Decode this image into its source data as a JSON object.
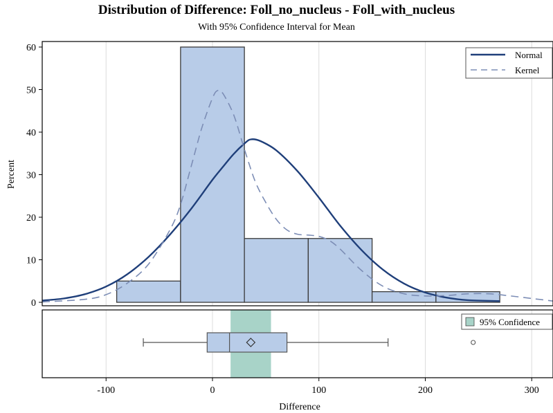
{
  "chart_data": {
    "type": "bar",
    "title": "Distribution of Difference: Foll_no_nucleus - Foll_with_nucleus",
    "subtitle": "With 95% Confidence Interval for Mean",
    "xlabel": "Difference",
    "ylabel": "Percent",
    "xlim": [
      -160,
      320
    ],
    "ylim": [
      0,
      61
    ],
    "x_ticks": [
      -100,
      0,
      100,
      200,
      300
    ],
    "y_ticks": [
      0,
      10,
      20,
      30,
      40,
      50,
      60
    ],
    "bins": [
      {
        "from": -90,
        "to": -30,
        "percent": 5
      },
      {
        "from": -30,
        "to": 30,
        "percent": 60
      },
      {
        "from": 30,
        "to": 90,
        "percent": 15
      },
      {
        "from": 90,
        "to": 150,
        "percent": 15
      },
      {
        "from": 150,
        "to": 210,
        "percent": 2.5
      },
      {
        "from": 210,
        "to": 270,
        "percent": 2.5
      }
    ],
    "series": [
      {
        "name": "Normal",
        "style": "solid",
        "color": "#1f3f7a",
        "x": [
          -160,
          -140,
          -120,
          -100,
          -80,
          -60,
          -40,
          -20,
          0,
          10,
          20,
          30,
          36,
          45,
          60,
          80,
          100,
          120,
          140,
          160,
          180,
          200,
          220,
          240,
          270
        ],
        "y": [
          0.4,
          0.9,
          1.9,
          3.7,
          6.6,
          10.7,
          15.9,
          22.0,
          28.8,
          31.9,
          34.9,
          37.3,
          38.3,
          37.9,
          35.7,
          30.8,
          24.6,
          18.0,
          12.3,
          7.7,
          4.4,
          2.3,
          1.1,
          0.5,
          0.3
        ]
      },
      {
        "name": "Kernel",
        "style": "dashed",
        "color": "#7c8db5",
        "x": [
          -160,
          -120,
          -100,
          -80,
          -60,
          -40,
          -30,
          -20,
          -10,
          0,
          5,
          10,
          20,
          30,
          40,
          50,
          60,
          70,
          80,
          90,
          100,
          110,
          120,
          140,
          160,
          180,
          200,
          220,
          240,
          260,
          280,
          300,
          320
        ],
        "y": [
          0.1,
          0.7,
          1.8,
          4.5,
          9.0,
          17.0,
          23.0,
          32.0,
          41.0,
          48.0,
          49.8,
          49.0,
          44.0,
          36.0,
          28.5,
          23.5,
          19.5,
          17.0,
          16.0,
          15.8,
          15.5,
          14.5,
          12.5,
          7.5,
          3.8,
          2.0,
          1.5,
          1.6,
          2.0,
          2.0,
          1.5,
          0.9,
          0.3
        ]
      }
    ],
    "legend": {
      "position": "top-right",
      "items": [
        "Normal",
        "Kernel"
      ]
    },
    "boxplot": {
      "whisker_low": -65,
      "q1": -5,
      "median": 16,
      "mean": 36,
      "q3": 70,
      "whisker_high": 165,
      "outliers": [
        245
      ],
      "ci_mean": [
        17,
        55
      ],
      "legend_label": "95% Confidence"
    },
    "grid": "vertical",
    "colors": {
      "bar_fill": "#b8cce8",
      "bar_stroke": "#3a3a3a",
      "ci_fill": "#a8d3c8",
      "grid": "#dcdcdc"
    }
  }
}
